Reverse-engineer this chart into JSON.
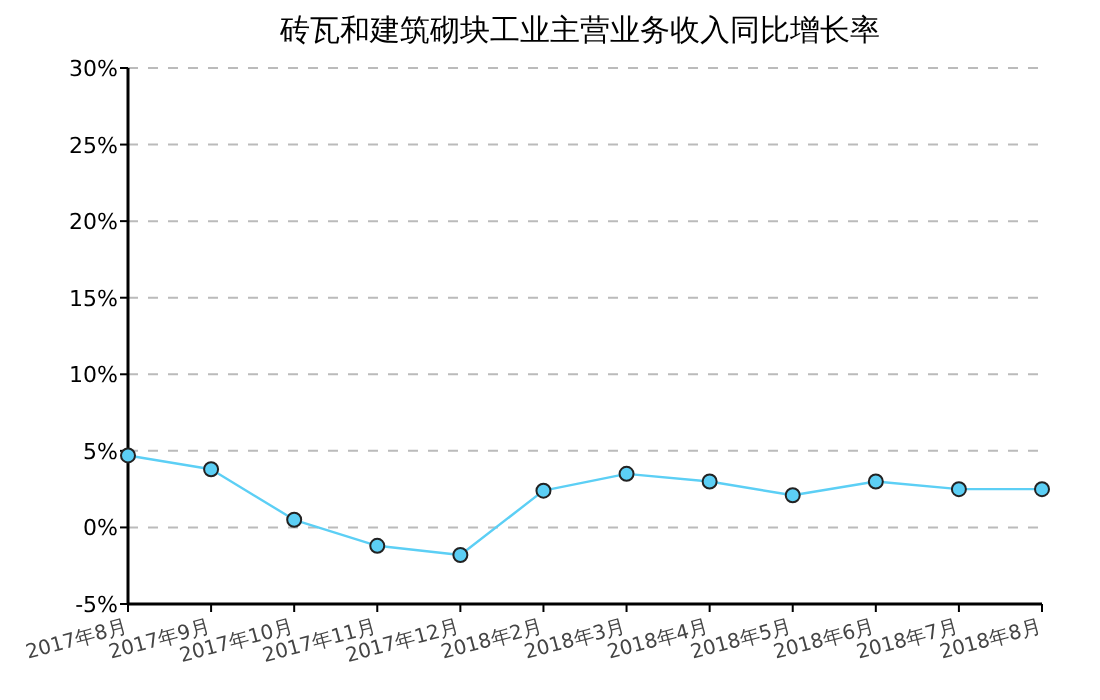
{
  "chart_data": {
    "type": "line",
    "title": "砖瓦和建筑砌块工业主营业务收入同比增长率",
    "categories": [
      "2017年8月",
      "2017年9月",
      "2017年10月",
      "2017年11月",
      "2017年12月",
      "2018年2月",
      "2018年3月",
      "2018年4月",
      "2018年5月",
      "2018年6月",
      "2018年7月",
      "2018年8月"
    ],
    "series": [
      {
        "color": "#5ccff5",
        "values": [
          4.7,
          3.8,
          0.5,
          -1.2,
          -1.8,
          2.4,
          3.5,
          3.0,
          2.1,
          3.0,
          2.5,
          2.5
        ]
      }
    ],
    "ylim": [
      -5,
      30
    ],
    "yticks": [
      {
        "value": -5,
        "label": "-5%"
      },
      {
        "value": 0,
        "label": "0%"
      },
      {
        "value": 5,
        "label": "5%"
      },
      {
        "value": 10,
        "label": "10%"
      },
      {
        "value": 15,
        "label": "15%"
      },
      {
        "value": 20,
        "label": "20%"
      },
      {
        "value": 25,
        "label": "25%"
      },
      {
        "value": 30,
        "label": "30%"
      }
    ],
    "grid": "y",
    "marker": "circle",
    "line_style": "solid"
  }
}
